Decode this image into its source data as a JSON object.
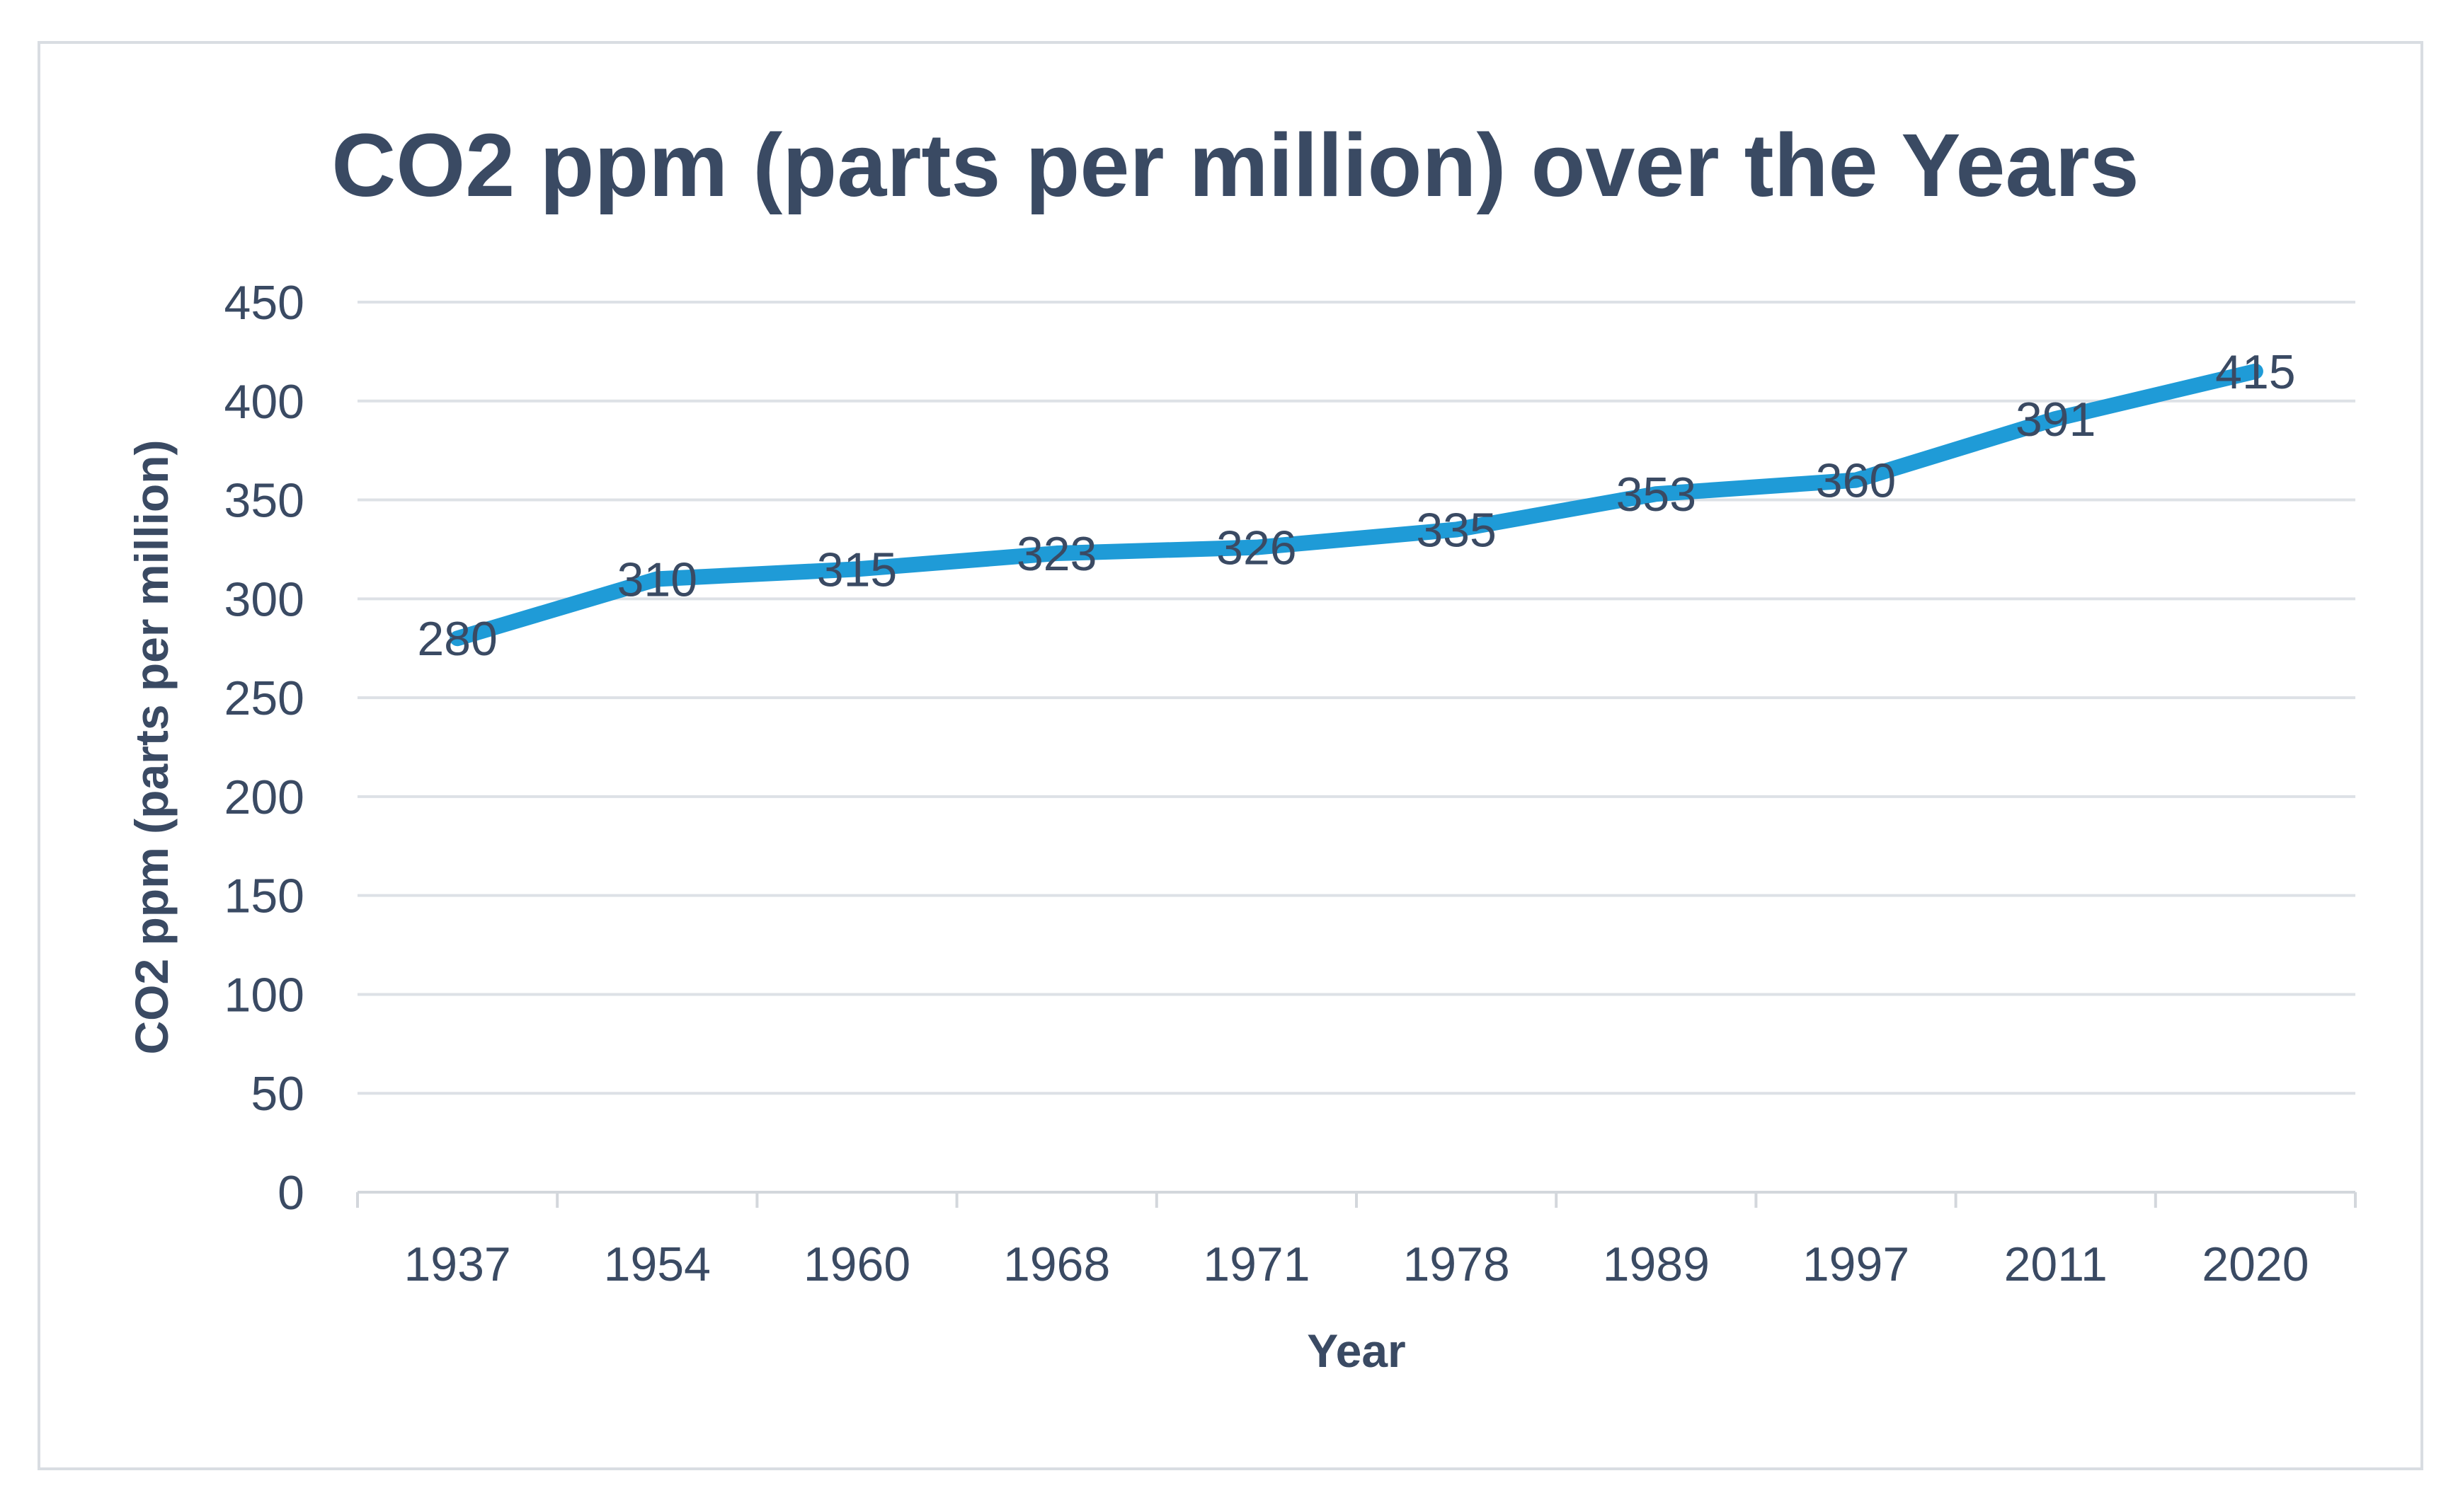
{
  "chart_data": {
    "type": "line",
    "title": "CO2 ppm (parts per million) over the Years",
    "xlabel": "Year",
    "ylabel": "CO2 ppm (parts per million)",
    "categories": [
      "1937",
      "1954",
      "1960",
      "1968",
      "1971",
      "1978",
      "1989",
      "1997",
      "2011",
      "2020"
    ],
    "series": [
      {
        "values": [
          280,
          310,
          315,
          323,
          326,
          335,
          353,
          360,
          391,
          415
        ],
        "color": "#1f9bd7"
      }
    ],
    "data_labels": [
      "280",
      "310",
      "315",
      "323",
      "326",
      "335",
      "353",
      "360",
      "391",
      "415"
    ],
    "y_ticks": [
      "0",
      "50",
      "100",
      "150",
      "200",
      "250",
      "300",
      "350",
      "400",
      "450"
    ],
    "ylim": [
      0,
      450
    ],
    "grid": true,
    "legend": "none",
    "colors": {
      "text": "#3a4a63",
      "gridline": "#dde1e6",
      "axis": "#d3d7dc",
      "frame_border": "#d9dde2"
    }
  }
}
